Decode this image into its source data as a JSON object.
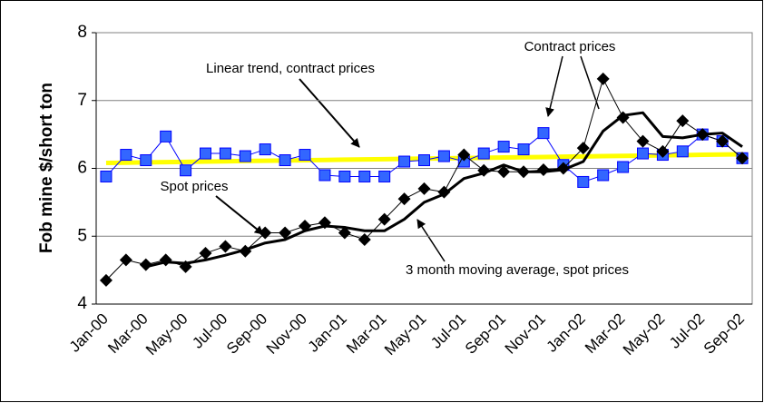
{
  "chart_data": {
    "type": "line",
    "y_label": "Fob mine $/short ton",
    "categories": [
      "Jan-00",
      null,
      "Mar-00",
      null,
      "May-00",
      null,
      "Jul-00",
      null,
      "Sep-00",
      null,
      "Nov-00",
      null,
      "Jan-01",
      null,
      "Mar-01",
      null,
      "May-01",
      null,
      "Jul-01",
      null,
      "Sep-01",
      null,
      "Nov-01",
      null,
      "Jan-02",
      null,
      "Mar-02",
      null,
      "May-02",
      null,
      "Jul-02",
      null,
      "Sep-02"
    ],
    "series": [
      {
        "name": "Linear trend, contract prices",
        "color": "#ffff00",
        "line_width": 5,
        "marker": "none",
        "values": [
          6.08,
          6.084,
          6.088,
          6.092,
          6.096,
          6.1,
          6.104,
          6.108,
          6.112,
          6.116,
          6.12,
          6.124,
          6.128,
          6.132,
          6.136,
          6.14,
          6.144,
          6.148,
          6.152,
          6.156,
          6.16,
          6.164,
          6.168,
          6.172,
          6.176,
          6.18,
          6.184,
          6.188,
          6.192,
          6.196,
          6.2,
          6.204,
          6.208
        ]
      },
      {
        "name": "Contract prices",
        "color": "#0000ff",
        "line_width": 1,
        "marker": "square",
        "values": [
          5.88,
          6.2,
          6.12,
          6.47,
          5.97,
          6.22,
          6.22,
          6.18,
          6.28,
          6.12,
          6.2,
          5.9,
          5.88,
          5.88,
          5.88,
          6.1,
          6.12,
          6.18,
          6.1,
          6.22,
          6.32,
          6.28,
          6.52,
          6.05,
          5.8,
          5.9,
          6.02,
          6.22,
          6.2,
          6.25,
          6.5,
          6.4,
          6.15
        ]
      },
      {
        "name": "Spot prices",
        "color": "#000000",
        "line_width": 1,
        "marker": "diamond",
        "values": [
          4.35,
          4.65,
          4.58,
          4.65,
          4.55,
          4.75,
          4.85,
          4.78,
          5.05,
          5.05,
          5.15,
          5.2,
          5.05,
          4.95,
          5.25,
          5.55,
          5.7,
          5.65,
          6.2,
          5.97,
          5.95,
          5.95,
          5.98,
          6.0,
          6.3,
          7.32,
          6.75,
          6.4,
          6.25,
          6.7,
          6.5,
          6.4,
          6.15
        ]
      },
      {
        "name": "3 month moving average, spot prices",
        "color": "#000000",
        "line_width": 3,
        "marker": "none",
        "values": [
          null,
          null,
          4.55,
          4.62,
          4.6,
          4.65,
          4.72,
          4.8,
          4.9,
          4.95,
          5.08,
          5.15,
          5.13,
          5.08,
          5.08,
          5.25,
          5.5,
          5.62,
          5.85,
          5.93,
          6.05,
          5.95,
          5.95,
          5.98,
          6.1,
          6.55,
          6.78,
          6.82,
          6.47,
          6.45,
          6.5,
          6.52,
          6.32
        ]
      }
    ],
    "ylim": [
      4,
      8
    ],
    "yticks": [
      4,
      5,
      6,
      7,
      8
    ],
    "grid": true
  }
}
